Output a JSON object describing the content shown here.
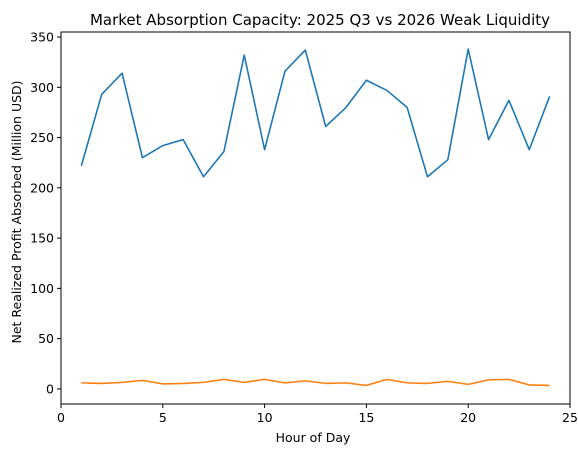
{
  "chart_data": {
    "type": "line",
    "title": "Market Absorption Capacity: 2025 Q3 vs 2026 Weak Liquidity",
    "xlabel": "Hour of Day",
    "ylabel": "Net Realized Profit Absorbed (Million USD)",
    "xlim": [
      0,
      25
    ],
    "ylim": [
      -15,
      355
    ],
    "xticks": [
      0,
      5,
      10,
      15,
      20,
      25
    ],
    "yticks": [
      0,
      50,
      100,
      150,
      200,
      250,
      300,
      350
    ],
    "grid": false,
    "x": [
      1,
      2,
      3,
      4,
      5,
      6,
      7,
      8,
      9,
      10,
      11,
      12,
      13,
      14,
      15,
      16,
      17,
      18,
      19,
      20,
      21,
      22,
      23,
      24
    ],
    "series": [
      {
        "color": "#1f77b4",
        "values": [
          222,
          293,
          314,
          230,
          242,
          248,
          211,
          236,
          332,
          238,
          316,
          337,
          261,
          280,
          307,
          297,
          280,
          211,
          228,
          338,
          248,
          287,
          238,
          291
        ]
      },
      {
        "color": "#ff7f0e",
        "values": [
          6,
          5.5,
          6.5,
          8.5,
          5,
          5.5,
          6.5,
          9.5,
          6.5,
          9.5,
          6,
          8,
          5.5,
          6,
          3.5,
          9.5,
          6,
          5.5,
          7.5,
          4.5,
          9,
          9.5,
          4,
          3.5
        ]
      }
    ]
  }
}
